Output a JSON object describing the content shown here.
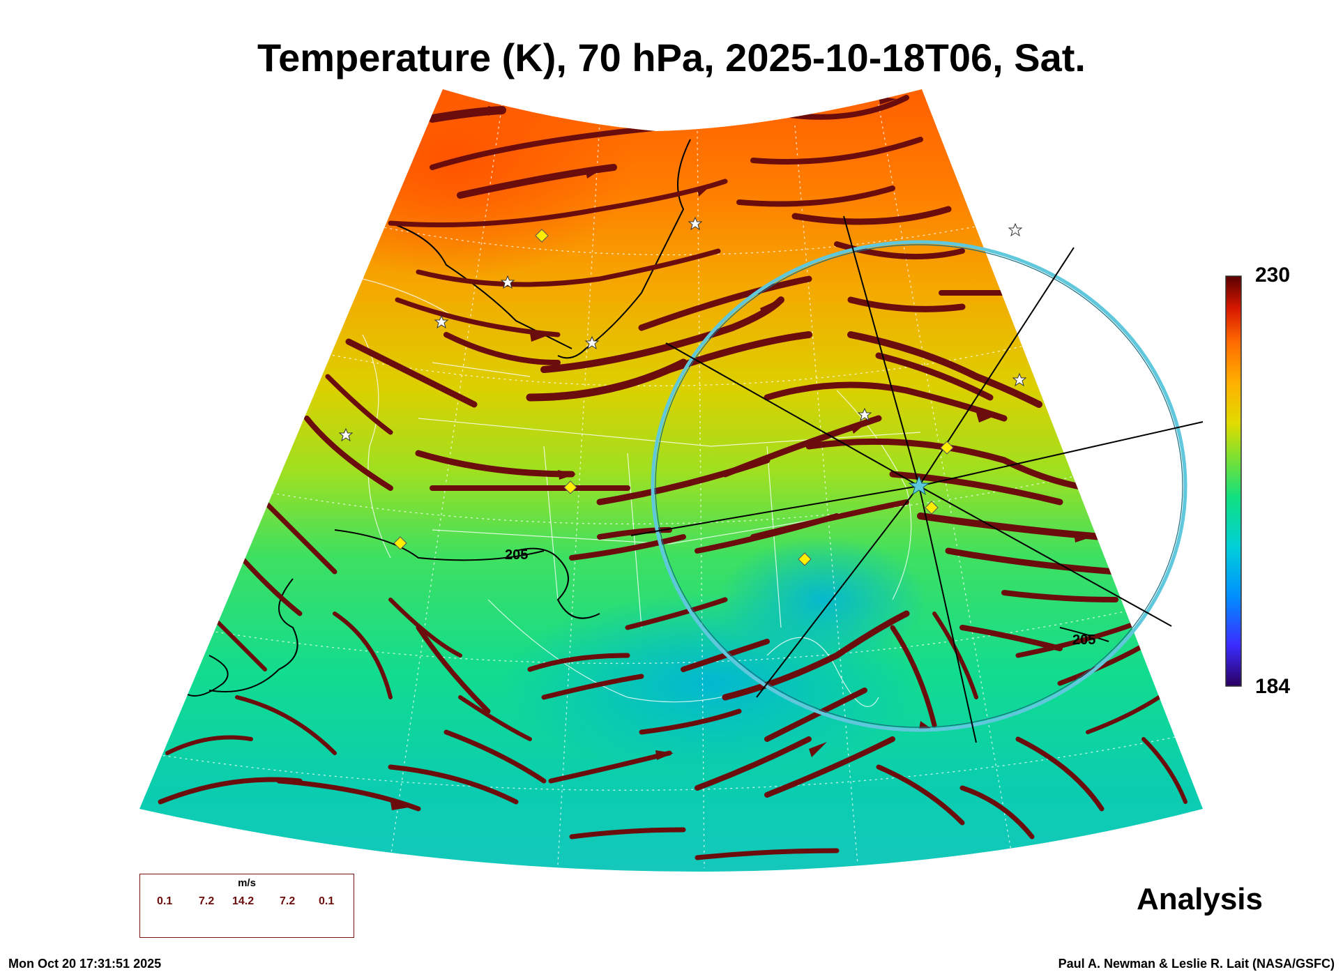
{
  "title": "Temperature (K), 70 hPa, 2025-10-18T06, Sat.",
  "colorbar": {
    "max": "230",
    "min": "184"
  },
  "contour_labels": [
    "205",
    "205"
  ],
  "label_analysis": "Analysis",
  "legend": {
    "units": "m/s",
    "values": [
      "0.1",
      "7.2",
      "14.2",
      "7.2",
      "0.1"
    ]
  },
  "footer": {
    "timestamp": "Mon Oct 20 17:31:51 2025",
    "credit": "Paul A. Newman & Leslie R. Lait (NASA/GSFC)"
  },
  "colors": {
    "streamline": "#6b0d0d",
    "ring": "#5fc8dc",
    "marker_diamond": "#ffee00",
    "colorbar_stops": [
      "#2a0060",
      "#3b3cff",
      "#00a0ff",
      "#00d8c8",
      "#22e070",
      "#b8e21c",
      "#f2c400",
      "#ff7a00",
      "#e02a00",
      "#5a0000"
    ]
  }
}
